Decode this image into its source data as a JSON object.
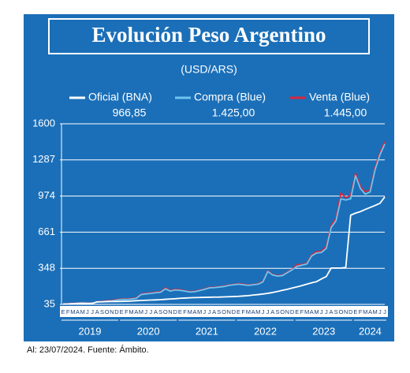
{
  "chart_data": {
    "type": "line",
    "title": "Evolución Peso Argentino",
    "subtitle": "(USD/ARS)",
    "footnote": "Al: 23/07/2024. Fuente: Ámbito.",
    "categories": [
      "E",
      "F",
      "M",
      "A",
      "M",
      "J",
      "J",
      "A",
      "S",
      "O",
      "N",
      "D",
      "E",
      "F",
      "M",
      "A",
      "M",
      "J",
      "J",
      "A",
      "S",
      "O",
      "N",
      "D",
      "E",
      "F",
      "M",
      "A",
      "M",
      "J",
      "J",
      "A",
      "S",
      "O",
      "N",
      "D",
      "E",
      "F",
      "M",
      "A",
      "M",
      "J",
      "J",
      "A",
      "S",
      "O",
      "N",
      "D",
      "E",
      "F",
      "M",
      "A",
      "M",
      "J",
      "J",
      "A",
      "S",
      "O",
      "N",
      "D",
      "E",
      "F",
      "M",
      "A",
      "M",
      "J",
      "J"
    ],
    "years": [
      "2019",
      "2020",
      "2021",
      "2022",
      "2023",
      "2024"
    ],
    "series": [
      {
        "name": "Venta (Blue)",
        "color": "#d7263d",
        "values": [
          40,
          41,
          44,
          46,
          47,
          46,
          46,
          57,
          61,
          66,
          69,
          77,
          82,
          82,
          86,
          91,
          125,
          131,
          135,
          141,
          146,
          178,
          155,
          166,
          161,
          154,
          146,
          149,
          159,
          169,
          182,
          184,
          189,
          194,
          204,
          208,
          215,
          210,
          203,
          208,
          214,
          236,
          326,
          294,
          284,
          290,
          315,
          341,
          381,
          380,
          392,
          465,
          492,
          495,
          540,
          720,
          780,
          1000,
          960,
          980,
          1170,
          1060,
          1010,
          1030,
          1220,
          1350,
          1445
        ],
        "value_labels": [
          null,
          null,
          null,
          null,
          null,
          null,
          null,
          null,
          null,
          null,
          null,
          null,
          null,
          null,
          null,
          null,
          null,
          null,
          null,
          null,
          null,
          null,
          null,
          null,
          null,
          null,
          null,
          null,
          null,
          null,
          null,
          null,
          null,
          null,
          null,
          null,
          null,
          null,
          null,
          null,
          null,
          null,
          null,
          null,
          null,
          null,
          null,
          null,
          null,
          null,
          null,
          null,
          null,
          null,
          null,
          null,
          null,
          null,
          null,
          null,
          null,
          null,
          null,
          null,
          null,
          null,
          "1.445,00"
        ]
      },
      {
        "name": "Compra (Blue)",
        "color": "#6ec6ef",
        "values": [
          38,
          39,
          42,
          44,
          45,
          44,
          44,
          55,
          58,
          62,
          65,
          72,
          78,
          78,
          82,
          87,
          120,
          126,
          130,
          136,
          140,
          170,
          150,
          160,
          156,
          150,
          142,
          145,
          155,
          165,
          178,
          180,
          185,
          190,
          200,
          205,
          210,
          205,
          200,
          205,
          210,
          230,
          320,
          290,
          280,
          285,
          310,
          335,
          365,
          375,
          385,
          455,
          480,
          485,
          520,
          700,
          760,
          950,
          940,
          950,
          1150,
          1040,
          990,
          1010,
          1200,
          1330,
          1425
        ],
        "value_labels": [
          null,
          null,
          null,
          null,
          null,
          null,
          null,
          null,
          null,
          null,
          null,
          null,
          null,
          null,
          null,
          null,
          null,
          null,
          null,
          null,
          null,
          null,
          null,
          null,
          null,
          null,
          null,
          null,
          null,
          null,
          null,
          null,
          null,
          null,
          null,
          null,
          null,
          null,
          null,
          null,
          null,
          null,
          null,
          null,
          null,
          null,
          null,
          null,
          null,
          null,
          null,
          null,
          null,
          null,
          null,
          null,
          null,
          null,
          null,
          null,
          null,
          null,
          null,
          null,
          null,
          null,
          "1.425,00"
        ]
      },
      {
        "name": "Oficial (BNA)",
        "color": "#ffffff",
        "values": [
          37.5,
          39,
          42,
          43.5,
          45,
          43,
          44,
          57,
          57,
          59.5,
          60,
          60,
          61,
          62.5,
          64.5,
          67,
          69,
          71,
          72.5,
          74,
          76,
          79,
          82,
          84,
          88,
          90,
          92,
          94,
          95,
          96,
          97,
          98,
          98.5,
          100,
          101.5,
          103,
          105,
          108,
          111,
          116,
          120,
          125,
          131,
          138,
          147,
          157,
          166,
          177,
          187,
          198,
          210,
          222,
          232,
          256,
          276,
          350,
          350,
          350,
          355,
          808,
          826,
          839,
          858,
          875,
          892,
          911,
          966.85
        ],
        "value_labels": [
          null,
          null,
          null,
          null,
          null,
          null,
          null,
          null,
          null,
          null,
          null,
          null,
          null,
          null,
          null,
          null,
          null,
          null,
          null,
          null,
          null,
          null,
          null,
          null,
          null,
          null,
          null,
          null,
          null,
          null,
          null,
          null,
          null,
          null,
          null,
          null,
          null,
          null,
          null,
          null,
          null,
          null,
          null,
          null,
          null,
          null,
          null,
          null,
          null,
          null,
          null,
          null,
          null,
          null,
          null,
          null,
          null,
          null,
          null,
          null,
          null,
          null,
          null,
          null,
          null,
          null,
          "966,85"
        ]
      }
    ],
    "legend_order": [
      2,
      1,
      0
    ],
    "ylim": [
      35,
      1600
    ],
    "yticks": [
      35,
      348,
      661,
      974,
      1287,
      1600
    ],
    "grid": true
  }
}
